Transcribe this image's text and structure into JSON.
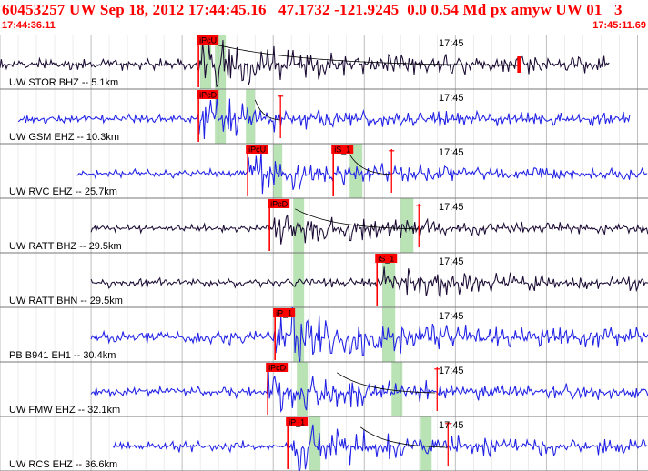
{
  "header": {
    "title": "60453257 UW Sep 18, 2012 17:44:45.16   47.1732 -121.9245  0.0 0.54 Md px amyw UW 01   3",
    "start_time": "17:44:36.11",
    "end_time": "17:45:11.69"
  },
  "colors": {
    "header_text": "#ff0000",
    "pick_box": "#ff0000",
    "window_band": "#b9e3b5",
    "blue_trace": "#1f1fe6",
    "dark_trace": "#1a0a33",
    "grid": "#9a9a9a",
    "coda": "#000000"
  },
  "window": {
    "start_s": 0,
    "end_s": 35.58
  },
  "traces": [
    {
      "label": "UW STOR BHZ -- 5.1km",
      "time_label": "17:45",
      "color": "dark",
      "data_start": 0.0,
      "data_end": 33.5,
      "amp": 0.32,
      "seed": 11,
      "picks": [
        {
          "text": "iPcU",
          "time": 10.9
        }
      ],
      "bands": [
        {
          "start": 11.0,
          "end": 11.6
        },
        {
          "start": 11.8,
          "end": 12.4
        }
      ],
      "coda": {
        "start": 12.0,
        "end": 28.5
      },
      "end_marker": 28.5
    },
    {
      "label": "UW GSM EHZ -- 10.3km",
      "time_label": "17:45",
      "color": "blue",
      "data_start": 1.0,
      "data_end": 34.6,
      "amp": 0.26,
      "seed": 23,
      "picks": [
        {
          "text": "iPcD",
          "time": 10.9
        }
      ],
      "bands": [
        {
          "start": 11.8,
          "end": 12.4
        },
        {
          "start": 13.5,
          "end": 14.0
        }
      ],
      "coda": {
        "start": 14.0,
        "end": 15.4
      },
      "red_ticks": [
        15.4
      ]
    },
    {
      "label": "UW RVC EHZ -- 25.7km",
      "time_label": "17:45",
      "color": "blue",
      "data_start": 4.2,
      "data_end": 38.0,
      "amp": 0.24,
      "seed": 37,
      "picks": [
        {
          "text": "iPcU",
          "time": 13.6
        },
        {
          "text": "iS_1",
          "time": 18.3
        }
      ],
      "bands": [
        {
          "start": 15.0,
          "end": 15.5
        },
        {
          "start": 19.2,
          "end": 19.9
        }
      ],
      "coda": {
        "start": 19.2,
        "end": 21.5
      },
      "red_ticks": [
        21.5
      ]
    },
    {
      "label": "UW RATT BHZ -- 29.5km",
      "time_label": "17:45",
      "color": "dark",
      "data_start": 5.0,
      "data_end": 38.5,
      "amp": 0.22,
      "seed": 41,
      "picks": [
        {
          "text": "iPcD",
          "time": 14.8
        }
      ],
      "bands": [
        {
          "start": 16.1,
          "end": 16.7
        },
        {
          "start": 22.0,
          "end": 22.7
        }
      ],
      "coda": {
        "start": 16.2,
        "end": 23.3
      },
      "red_ticks": [
        23.0
      ]
    },
    {
      "label": "UW RATT BHN -- 29.5km",
      "time_label": "17:45",
      "color": "dark",
      "data_start": 5.0,
      "data_end": 38.5,
      "amp": 0.26,
      "seed": 53,
      "picks": [
        {
          "text": "iS_1",
          "time": 20.7
        }
      ],
      "bands": [
        {
          "start": 16.1,
          "end": 16.7
        },
        {
          "start": 21.0,
          "end": 21.7
        }
      ]
    },
    {
      "label": "PB B941 EH1 -- 30.4km",
      "time_label": "17:45",
      "color": "blue",
      "data_start": 5.0,
      "data_end": 39.0,
      "amp": 0.36,
      "seed": 67,
      "picks": [
        {
          "text": "iP_1",
          "time": 15.1
        }
      ],
      "bands": [
        {
          "start": 16.1,
          "end": 16.7
        },
        {
          "start": 21.0,
          "end": 21.7
        }
      ]
    },
    {
      "label": "UW FMW EHZ -- 32.1km",
      "time_label": "17:45",
      "color": "blue",
      "data_start": 5.0,
      "data_end": 39.5,
      "amp": 0.28,
      "seed": 79,
      "picks": [
        {
          "text": "iPcD",
          "time": 14.7
        }
      ],
      "bands": [
        {
          "start": 16.3,
          "end": 16.9
        },
        {
          "start": 21.5,
          "end": 22.1
        }
      ],
      "coda": {
        "start": 18.5,
        "end": 24.0
      },
      "red_ticks": [
        24.0
      ]
    },
    {
      "label": "UW RCS EHZ -- 36.6km",
      "time_label": "17:45",
      "color": "blue",
      "data_start": 6.2,
      "data_end": 40.0,
      "amp": 0.3,
      "seed": 97,
      "picks": [
        {
          "text": "iP_1",
          "time": 15.8
        }
      ],
      "bands": [
        {
          "start": 17.0,
          "end": 17.6
        },
        {
          "start": 23.1,
          "end": 23.7
        }
      ],
      "coda": {
        "start": 19.8,
        "end": 24.6
      },
      "red_ticks": [
        24.6
      ]
    }
  ]
}
